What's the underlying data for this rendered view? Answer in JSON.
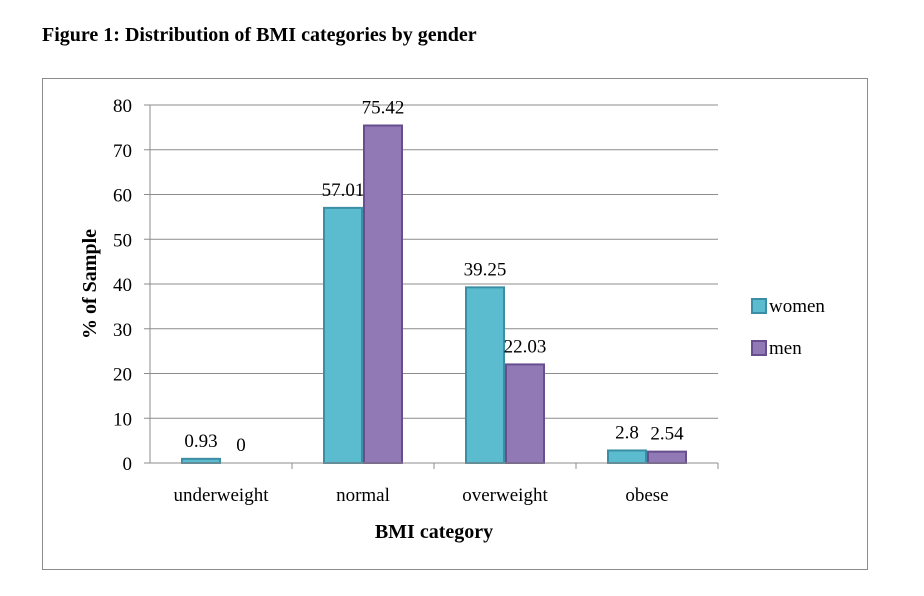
{
  "figure_title": "Figure 1: Distribution of BMI categories by gender",
  "colors": {
    "women_fill": "#5bbccf",
    "women_stroke": "#3b8ea3",
    "men_fill": "#9179b5",
    "men_stroke": "#674e8e"
  },
  "chart_data": {
    "type": "bar",
    "categories": [
      "underweight",
      "normal",
      "overweight",
      "obese"
    ],
    "series": [
      {
        "name": "women",
        "values": [
          0.93,
          57.01,
          39.25,
          2.8
        ],
        "labels": [
          "0.93",
          "57.01",
          "39.25",
          "2.8"
        ]
      },
      {
        "name": "men",
        "values": [
          0,
          75.42,
          22.03,
          2.54
        ],
        "labels": [
          "0",
          "75.42",
          "22.03",
          "2.54"
        ]
      }
    ],
    "xlabel": "BMI category",
    "ylabel": "% of Sample",
    "ylim": [
      0,
      80
    ],
    "yticks": [
      0,
      10,
      20,
      30,
      40,
      50,
      60,
      70,
      80
    ],
    "grid": true,
    "legend_position": "right"
  }
}
